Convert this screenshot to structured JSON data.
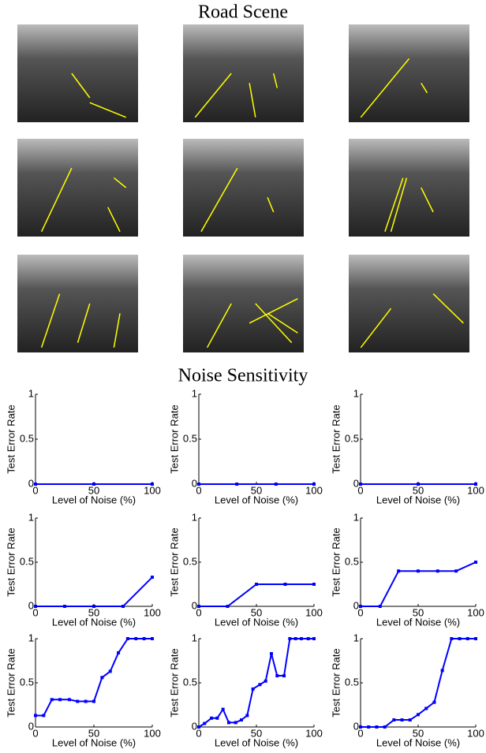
{
  "headings": [
    "Road Scene",
    "Noise Sensitivity"
  ],
  "chart_data": [
    {
      "type": "line",
      "xlabel": "Level of Noise (%)",
      "ylabel": "Test Error Rate",
      "x": [
        0,
        50,
        100
      ],
      "values": [
        0,
        0,
        0
      ],
      "color": "#0000ff",
      "xlim": [
        0,
        100
      ],
      "ylim": [
        0,
        1
      ],
      "xticks": [
        0,
        50,
        100
      ],
      "yticks": [
        0,
        0.5,
        1
      ]
    },
    {
      "type": "line",
      "xlabel": "Level of Noise (%)",
      "ylabel": "Test Error Rate",
      "x": [
        0,
        33,
        67,
        100
      ],
      "values": [
        0,
        0,
        0,
        0
      ],
      "color": "#0000ff",
      "xlim": [
        0,
        100
      ],
      "ylim": [
        0,
        1
      ],
      "xticks": [
        0,
        50,
        100
      ],
      "yticks": [
        0,
        0.5,
        1
      ]
    },
    {
      "type": "line",
      "xlabel": "Level of Noise (%)",
      "ylabel": "Test Error Rate",
      "x": [
        0,
        50,
        100
      ],
      "values": [
        0,
        0,
        0
      ],
      "color": "#0000ff",
      "xlim": [
        0,
        100
      ],
      "ylim": [
        0,
        1
      ],
      "xticks": [
        0,
        50,
        100
      ],
      "yticks": [
        0,
        0.5,
        1
      ]
    },
    {
      "type": "line",
      "xlabel": "Level of Noise (%)",
      "ylabel": "Test Error Rate",
      "x": [
        0,
        25,
        50,
        75,
        100
      ],
      "values": [
        0,
        0,
        0,
        0,
        0.33
      ],
      "color": "#0000ff",
      "xlim": [
        0,
        100
      ],
      "ylim": [
        0,
        1
      ],
      "xticks": [
        0,
        50,
        100
      ],
      "yticks": [
        0,
        0.5,
        1
      ]
    },
    {
      "type": "line",
      "xlabel": "Level of Noise (%)",
      "ylabel": "Test Error Rate",
      "x": [
        0,
        25,
        50,
        75,
        100
      ],
      "values": [
        0,
        0,
        0.25,
        0.25,
        0.25
      ],
      "color": "#0000ff",
      "xlim": [
        0,
        100
      ],
      "ylim": [
        0,
        1
      ],
      "xticks": [
        0,
        50,
        100
      ],
      "yticks": [
        0,
        0.5,
        1
      ]
    },
    {
      "type": "line",
      "xlabel": "Level of Noise (%)",
      "ylabel": "Test Error Rate",
      "x": [
        0,
        17,
        33,
        50,
        67,
        83,
        100
      ],
      "values": [
        0,
        0,
        0.4,
        0.4,
        0.4,
        0.4,
        0.5
      ],
      "color": "#0000ff",
      "xlim": [
        0,
        100
      ],
      "ylim": [
        0,
        1
      ],
      "xticks": [
        0,
        50,
        100
      ],
      "yticks": [
        0,
        0.5,
        1
      ]
    },
    {
      "type": "line",
      "xlabel": "Level of Noise (%)",
      "ylabel": "Test Error Rate",
      "x": [
        0,
        7,
        14,
        21,
        29,
        36,
        43,
        50,
        57,
        64,
        71,
        79,
        86,
        93,
        100
      ],
      "values": [
        0.13,
        0.13,
        0.31,
        0.31,
        0.31,
        0.29,
        0.29,
        0.29,
        0.56,
        0.63,
        0.84,
        1,
        1,
        1,
        1
      ],
      "color": "#0000ff",
      "xlim": [
        0,
        100
      ],
      "ylim": [
        0,
        1
      ],
      "xticks": [
        0,
        50,
        100
      ],
      "yticks": [
        0,
        0.5,
        1
      ]
    },
    {
      "type": "line",
      "xlabel": "Level of Noise (%)",
      "ylabel": "Test Error Rate",
      "x": [
        0,
        5,
        11,
        16,
        21,
        26,
        32,
        37,
        42,
        47,
        53,
        58,
        63,
        68,
        74,
        79,
        84,
        89,
        95,
        100
      ],
      "values": [
        0,
        0.04,
        0.1,
        0.1,
        0.2,
        0.05,
        0.05,
        0.08,
        0.13,
        0.43,
        0.48,
        0.52,
        0.83,
        0.58,
        0.58,
        1,
        1,
        1,
        1,
        1
      ],
      "color": "#0000ff",
      "xlim": [
        0,
        100
      ],
      "ylim": [
        0,
        1
      ],
      "xticks": [
        0,
        50,
        100
      ],
      "yticks": [
        0,
        0.5,
        1
      ]
    },
    {
      "type": "line",
      "xlabel": "Level of Noise (%)",
      "ylabel": "Test Error Rate",
      "x": [
        0,
        7,
        14,
        21,
        29,
        36,
        43,
        50,
        57,
        64,
        71,
        79,
        86,
        93,
        100
      ],
      "values": [
        0,
        0,
        0,
        0,
        0.08,
        0.08,
        0.08,
        0.14,
        0.21,
        0.28,
        0.64,
        1,
        1,
        1,
        1
      ],
      "color": "#0000ff",
      "xlim": [
        0,
        100
      ],
      "ylim": [
        0,
        1
      ],
      "xticks": [
        0,
        50,
        100
      ],
      "yticks": [
        0,
        0.5,
        1
      ]
    }
  ]
}
